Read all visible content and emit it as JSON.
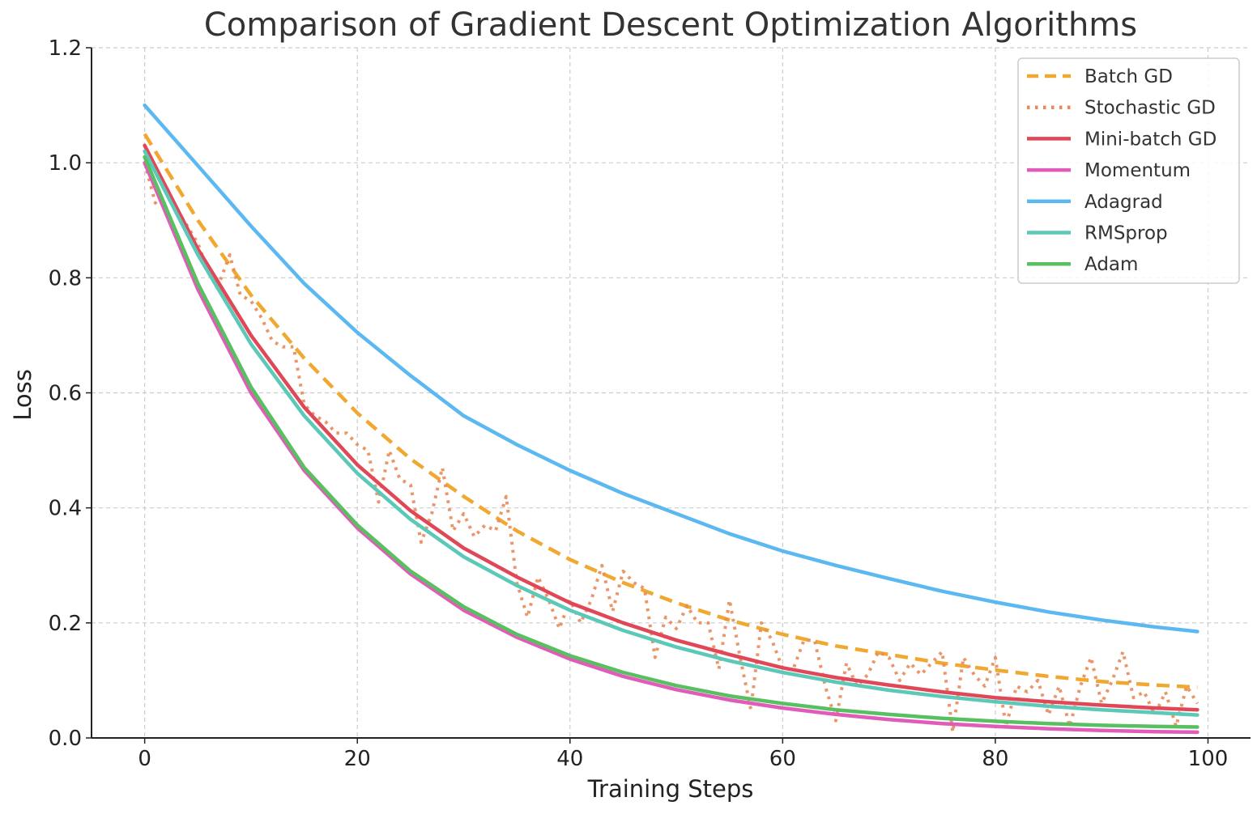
{
  "chart_data": {
    "type": "line",
    "title": "Comparison of Gradient Descent Optimization Algorithms",
    "xlabel": "Training Steps",
    "ylabel": "Loss",
    "xlim": [
      -5,
      104
    ],
    "ylim": [
      0,
      1.2
    ],
    "xticks": [
      "0",
      "20",
      "40",
      "60",
      "80",
      "100"
    ],
    "yticks": [
      "0.0",
      "0.2",
      "0.4",
      "0.6",
      "0.8",
      "1.0",
      "1.2"
    ],
    "grid": true,
    "legend_position": "top-right",
    "x": [
      0,
      99
    ],
    "series": [
      {
        "name": "Batch GD",
        "color": "#f0a830",
        "style": "dashed",
        "points": [
          [
            0,
            1.05
          ],
          [
            5,
            0.9
          ],
          [
            10,
            0.77
          ],
          [
            15,
            0.66
          ],
          [
            20,
            0.565
          ],
          [
            25,
            0.485
          ],
          [
            30,
            0.42
          ],
          [
            35,
            0.36
          ],
          [
            40,
            0.31
          ],
          [
            45,
            0.27
          ],
          [
            50,
            0.235
          ],
          [
            55,
            0.205
          ],
          [
            60,
            0.18
          ],
          [
            65,
            0.16
          ],
          [
            70,
            0.145
          ],
          [
            75,
            0.13
          ],
          [
            80,
            0.118
          ],
          [
            85,
            0.107
          ],
          [
            90,
            0.098
          ],
          [
            95,
            0.092
          ],
          [
            99,
            0.088
          ]
        ]
      },
      {
        "name": "Stochastic GD",
        "color": "#e8895a",
        "style": "dotted",
        "points": [
          [
            0,
            1.0
          ],
          [
            1,
            0.93
          ],
          [
            2,
            0.96
          ],
          [
            3,
            0.92
          ],
          [
            4,
            0.89
          ],
          [
            5,
            0.86
          ],
          [
            6,
            0.81
          ],
          [
            7,
            0.79
          ],
          [
            8,
            0.84
          ],
          [
            9,
            0.77
          ],
          [
            10,
            0.76
          ],
          [
            11,
            0.73
          ],
          [
            12,
            0.69
          ],
          [
            13,
            0.68
          ],
          [
            14,
            0.68
          ],
          [
            15,
            0.58
          ],
          [
            16,
            0.56
          ],
          [
            17,
            0.55
          ],
          [
            18,
            0.53
          ],
          [
            19,
            0.53
          ],
          [
            20,
            0.51
          ],
          [
            21,
            0.5
          ],
          [
            22,
            0.41
          ],
          [
            23,
            0.5
          ],
          [
            24,
            0.45
          ],
          [
            25,
            0.44
          ],
          [
            26,
            0.34
          ],
          [
            27,
            0.39
          ],
          [
            28,
            0.47
          ],
          [
            29,
            0.36
          ],
          [
            30,
            0.39
          ],
          [
            31,
            0.35
          ],
          [
            32,
            0.37
          ],
          [
            33,
            0.36
          ],
          [
            34,
            0.42
          ],
          [
            35,
            0.27
          ],
          [
            36,
            0.21
          ],
          [
            37,
            0.28
          ],
          [
            38,
            0.24
          ],
          [
            39,
            0.19
          ],
          [
            40,
            0.24
          ],
          [
            41,
            0.2
          ],
          [
            42,
            0.24
          ],
          [
            43,
            0.3
          ],
          [
            44,
            0.22
          ],
          [
            45,
            0.29
          ],
          [
            46,
            0.27
          ],
          [
            47,
            0.26
          ],
          [
            48,
            0.14
          ],
          [
            49,
            0.21
          ],
          [
            50,
            0.19
          ],
          [
            51,
            0.23
          ],
          [
            52,
            0.2
          ],
          [
            53,
            0.2
          ],
          [
            54,
            0.12
          ],
          [
            55,
            0.24
          ],
          [
            56,
            0.14
          ],
          [
            57,
            0.05
          ],
          [
            58,
            0.2
          ],
          [
            59,
            0.17
          ],
          [
            60,
            0.12
          ],
          [
            61,
            0.12
          ],
          [
            62,
            0.17
          ],
          [
            63,
            0.17
          ],
          [
            64,
            0.09
          ],
          [
            65,
            0.03
          ],
          [
            66,
            0.13
          ],
          [
            67,
            0.09
          ],
          [
            68,
            0.11
          ],
          [
            69,
            0.15
          ],
          [
            70,
            0.14
          ],
          [
            71,
            0.1
          ],
          [
            72,
            0.13
          ],
          [
            73,
            0.11
          ],
          [
            74,
            0.13
          ],
          [
            75,
            0.15
          ],
          [
            76,
            0.01
          ],
          [
            77,
            0.14
          ],
          [
            78,
            0.11
          ],
          [
            79,
            0.09
          ],
          [
            80,
            0.14
          ],
          [
            81,
            0.02
          ],
          [
            82,
            0.09
          ],
          [
            83,
            0.08
          ],
          [
            84,
            0.1
          ],
          [
            85,
            0.04
          ],
          [
            86,
            0.09
          ],
          [
            87,
            0.02
          ],
          [
            88,
            0.09
          ],
          [
            89,
            0.14
          ],
          [
            90,
            0.06
          ],
          [
            91,
            0.1
          ],
          [
            92,
            0.15
          ],
          [
            93,
            0.07
          ],
          [
            94,
            0.08
          ],
          [
            95,
            0.04
          ],
          [
            96,
            0.08
          ],
          [
            97,
            0.02
          ],
          [
            98,
            0.09
          ],
          [
            99,
            0.06
          ]
        ]
      },
      {
        "name": "Mini-batch GD",
        "color": "#e04858",
        "style": "solid",
        "points": [
          [
            0,
            1.03
          ],
          [
            5,
            0.85
          ],
          [
            10,
            0.7
          ],
          [
            15,
            0.575
          ],
          [
            20,
            0.475
          ],
          [
            25,
            0.395
          ],
          [
            30,
            0.33
          ],
          [
            35,
            0.28
          ],
          [
            40,
            0.235
          ],
          [
            45,
            0.2
          ],
          [
            50,
            0.17
          ],
          [
            55,
            0.145
          ],
          [
            60,
            0.122
          ],
          [
            65,
            0.105
          ],
          [
            70,
            0.092
          ],
          [
            75,
            0.08
          ],
          [
            80,
            0.07
          ],
          [
            85,
            0.063
          ],
          [
            90,
            0.057
          ],
          [
            95,
            0.052
          ],
          [
            99,
            0.049
          ]
        ]
      },
      {
        "name": "Momentum",
        "color": "#e05cb8",
        "style": "solid",
        "points": [
          [
            0,
            1.0
          ],
          [
            5,
            0.78
          ],
          [
            10,
            0.6
          ],
          [
            15,
            0.465
          ],
          [
            20,
            0.365
          ],
          [
            25,
            0.285
          ],
          [
            30,
            0.222
          ],
          [
            35,
            0.175
          ],
          [
            40,
            0.137
          ],
          [
            45,
            0.107
          ],
          [
            50,
            0.084
          ],
          [
            55,
            0.066
          ],
          [
            60,
            0.052
          ],
          [
            65,
            0.041
          ],
          [
            70,
            0.032
          ],
          [
            75,
            0.025
          ],
          [
            80,
            0.02
          ],
          [
            85,
            0.016
          ],
          [
            90,
            0.013
          ],
          [
            95,
            0.011
          ],
          [
            99,
            0.01
          ]
        ]
      },
      {
        "name": "Adagrad",
        "color": "#5cb8f0",
        "style": "solid",
        "points": [
          [
            0,
            1.1
          ],
          [
            5,
            0.995
          ],
          [
            10,
            0.89
          ],
          [
            15,
            0.79
          ],
          [
            20,
            0.705
          ],
          [
            25,
            0.63
          ],
          [
            30,
            0.56
          ],
          [
            35,
            0.51
          ],
          [
            40,
            0.465
          ],
          [
            45,
            0.425
          ],
          [
            50,
            0.39
          ],
          [
            55,
            0.355
          ],
          [
            60,
            0.325
          ],
          [
            65,
            0.3
          ],
          [
            70,
            0.277
          ],
          [
            75,
            0.255
          ],
          [
            80,
            0.236
          ],
          [
            85,
            0.219
          ],
          [
            90,
            0.205
          ],
          [
            95,
            0.193
          ],
          [
            99,
            0.185
          ]
        ]
      },
      {
        "name": "RMSprop",
        "color": "#5cc8b8",
        "style": "solid",
        "points": [
          [
            0,
            1.02
          ],
          [
            5,
            0.84
          ],
          [
            10,
            0.685
          ],
          [
            15,
            0.56
          ],
          [
            20,
            0.46
          ],
          [
            25,
            0.38
          ],
          [
            30,
            0.315
          ],
          [
            35,
            0.265
          ],
          [
            40,
            0.222
          ],
          [
            45,
            0.187
          ],
          [
            50,
            0.158
          ],
          [
            55,
            0.134
          ],
          [
            60,
            0.114
          ],
          [
            65,
            0.097
          ],
          [
            70,
            0.083
          ],
          [
            75,
            0.072
          ],
          [
            80,
            0.063
          ],
          [
            85,
            0.055
          ],
          [
            90,
            0.049
          ],
          [
            95,
            0.044
          ],
          [
            99,
            0.04
          ]
        ]
      },
      {
        "name": "Adam",
        "color": "#58c060",
        "style": "solid",
        "points": [
          [
            0,
            1.01
          ],
          [
            5,
            0.79
          ],
          [
            10,
            0.61
          ],
          [
            15,
            0.47
          ],
          [
            20,
            0.37
          ],
          [
            25,
            0.29
          ],
          [
            30,
            0.228
          ],
          [
            35,
            0.18
          ],
          [
            40,
            0.143
          ],
          [
            45,
            0.114
          ],
          [
            50,
            0.091
          ],
          [
            55,
            0.073
          ],
          [
            60,
            0.06
          ],
          [
            65,
            0.049
          ],
          [
            70,
            0.041
          ],
          [
            75,
            0.034
          ],
          [
            80,
            0.029
          ],
          [
            85,
            0.025
          ],
          [
            90,
            0.022
          ],
          [
            95,
            0.02
          ],
          [
            99,
            0.019
          ]
        ]
      }
    ]
  }
}
